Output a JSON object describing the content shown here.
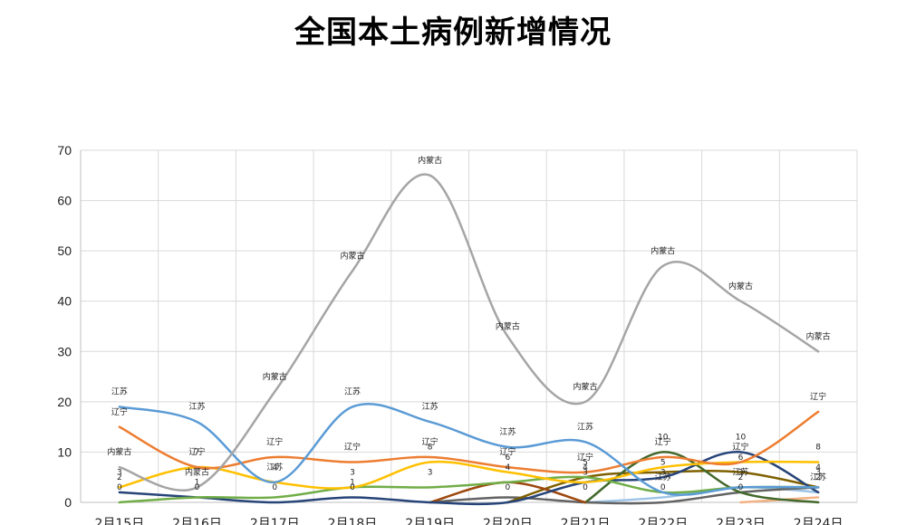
{
  "chart_data": {
    "type": "line",
    "title": "全国本土病例新增情况",
    "xlabel": "",
    "ylabel": "",
    "categories": [
      "2月15日",
      "2月16日",
      "2月17日",
      "2月18日",
      "2月19日",
      "2月20日",
      "2月21日",
      "2月22日",
      "2月23日",
      "2月24日"
    ],
    "ylim": [
      0,
      70
    ],
    "yticks": [
      0,
      10,
      20,
      30,
      40,
      50,
      60,
      70
    ],
    "grid": true,
    "smooth": true,
    "series": [
      {
        "name": "内蒙古",
        "color": "#a5a5a5",
        "values": [
          7,
          3,
          22,
          46,
          65,
          33,
          20,
          47,
          40,
          30
        ]
      },
      {
        "name": "江苏",
        "color": "#5b9bd5",
        "values": [
          19,
          16,
          4,
          19,
          16,
          11,
          12,
          2,
          3,
          3
        ]
      },
      {
        "name": "辽宁",
        "color": "#ed7d31",
        "values": [
          15,
          7,
          9,
          8,
          9,
          7,
          6,
          9,
          8,
          18
        ]
      },
      {
        "name": "",
        "color": "#ffc000",
        "values": [
          3,
          7,
          4,
          3,
          8,
          6,
          4,
          7,
          8,
          8
        ]
      },
      {
        "name": "",
        "color": "#70ad47",
        "values": [
          0,
          1,
          1,
          3,
          3,
          4,
          5,
          2,
          3,
          3
        ]
      },
      {
        "name": "",
        "color": "#264478",
        "values": [
          2,
          1,
          0,
          1,
          0,
          0,
          4,
          5,
          10,
          2
        ]
      },
      {
        "name": "",
        "color": "#9e480e",
        "values": [
          null,
          null,
          null,
          null,
          0,
          4,
          0,
          null,
          null,
          null
        ]
      },
      {
        "name": "",
        "color": "#43682b",
        "values": [
          null,
          null,
          null,
          null,
          null,
          null,
          0,
          10,
          2,
          0
        ]
      },
      {
        "name": "",
        "color": "#7f6000",
        "values": [
          null,
          null,
          null,
          null,
          null,
          0,
          5,
          6,
          6,
          3
        ]
      },
      {
        "name": "",
        "color": "#636363",
        "values": [
          null,
          null,
          null,
          null,
          0,
          1,
          0,
          0,
          2,
          3
        ]
      },
      {
        "name": "",
        "color": "#9dc3e6",
        "values": [
          null,
          null,
          null,
          null,
          null,
          null,
          0,
          1,
          3,
          2
        ]
      },
      {
        "name": "",
        "color": "#f4b183",
        "values": [
          null,
          null,
          null,
          null,
          null,
          null,
          null,
          null,
          0,
          1
        ]
      }
    ],
    "data_labels": [
      {
        "text": "内蒙古",
        "x": "2月15日",
        "y": 9.5
      },
      {
        "text": "内蒙古",
        "x": "2月16日",
        "y": 5.5
      },
      {
        "text": "内蒙古",
        "x": "2月17日",
        "y": 24.5
      },
      {
        "text": "内蒙古",
        "x": "2月18日",
        "y": 48.5
      },
      {
        "text": "内蒙古",
        "x": "2月19日",
        "y": 67.5
      },
      {
        "text": "内蒙古",
        "x": "2月20日",
        "y": 34.5
      },
      {
        "text": "内蒙古",
        "x": "2月21日",
        "y": 22.5
      },
      {
        "text": "内蒙古",
        "x": "2月22日",
        "y": 49.5
      },
      {
        "text": "内蒙古",
        "x": "2月23日",
        "y": 42.5
      },
      {
        "text": "内蒙古",
        "x": "2月24日",
        "y": 32.5
      },
      {
        "text": "江苏",
        "x": "2月15日",
        "y": 21.5
      },
      {
        "text": "江苏",
        "x": "2月16日",
        "y": 18.5
      },
      {
        "text": "江苏",
        "x": "2月17日",
        "y": 6.5
      },
      {
        "text": "江苏",
        "x": "2月18日",
        "y": 21.5
      },
      {
        "text": "江苏",
        "x": "2月19日",
        "y": 18.5
      },
      {
        "text": "江苏",
        "x": "2月20日",
        "y": 13.5
      },
      {
        "text": "江苏",
        "x": "2月21日",
        "y": 14.5
      },
      {
        "text": "江苏",
        "x": "2月22日",
        "y": 4.5
      },
      {
        "text": "江苏",
        "x": "2月23日",
        "y": 5.5
      },
      {
        "text": "江苏",
        "x": "2月24日",
        "y": 4.5
      },
      {
        "text": "辽宁",
        "x": "2月15日",
        "y": 17.5
      },
      {
        "text": "辽宁",
        "x": "2月16日",
        "y": 9.5
      },
      {
        "text": "辽宁",
        "x": "2月17日",
        "y": 11.5
      },
      {
        "text": "辽宁",
        "x": "2月18日",
        "y": 10.5
      },
      {
        "text": "辽宁",
        "x": "2月19日",
        "y": 11.5
      },
      {
        "text": "辽宁",
        "x": "2月20日",
        "y": 9.5
      },
      {
        "text": "辽宁",
        "x": "2月21日",
        "y": 8.5
      },
      {
        "text": "辽宁",
        "x": "2月22日",
        "y": 11.5
      },
      {
        "text": "辽宁",
        "x": "2月23日",
        "y": 10.5
      },
      {
        "text": "辽宁",
        "x": "2月24日",
        "y": 20.5
      },
      {
        "text": "3",
        "x": "2月15日",
        "y": 5.5
      },
      {
        "text": "2",
        "x": "2月15日",
        "y": 4.5
      },
      {
        "text": "0",
        "x": "2月15日",
        "y": 2.5
      },
      {
        "text": "7",
        "x": "2月16日",
        "y": 9.5
      },
      {
        "text": "1",
        "x": "2月16日",
        "y": 3.5
      },
      {
        "text": "0",
        "x": "2月16日",
        "y": 2.5
      },
      {
        "text": "4",
        "x": "2月17日",
        "y": 6.5
      },
      {
        "text": "0",
        "x": "2月17日",
        "y": 2.5
      },
      {
        "text": "3",
        "x": "2月18日",
        "y": 5.5
      },
      {
        "text": "1",
        "x": "2月18日",
        "y": 3.5
      },
      {
        "text": "0",
        "x": "2月18日",
        "y": 2.5
      },
      {
        "text": "8",
        "x": "2月19日",
        "y": 10.5
      },
      {
        "text": "3",
        "x": "2月19日",
        "y": 5.5
      },
      {
        "text": "6",
        "x": "2月20日",
        "y": 8.5
      },
      {
        "text": "4",
        "x": "2月20日",
        "y": 6.5
      },
      {
        "text": "0",
        "x": "2月20日",
        "y": 2.5
      },
      {
        "text": "5",
        "x": "2月21日",
        "y": 7.5
      },
      {
        "text": "4",
        "x": "2月21日",
        "y": 6.5
      },
      {
        "text": "3",
        "x": "2月21日",
        "y": 5.5
      },
      {
        "text": "0",
        "x": "2月21日",
        "y": 2.5
      },
      {
        "text": "10",
        "x": "2月22日",
        "y": 12.5
      },
      {
        "text": "5",
        "x": "2月22日",
        "y": 7.5
      },
      {
        "text": "3",
        "x": "2月22日",
        "y": 5.5
      },
      {
        "text": "0",
        "x": "2月22日",
        "y": 2.5
      },
      {
        "text": "10",
        "x": "2月23日",
        "y": 12.5
      },
      {
        "text": "6",
        "x": "2月23日",
        "y": 8.5
      },
      {
        "text": "3",
        "x": "2月23日",
        "y": 5.5
      },
      {
        "text": "2",
        "x": "2月23日",
        "y": 4.5
      },
      {
        "text": "0",
        "x": "2月23日",
        "y": 2.5
      },
      {
        "text": "8",
        "x": "2月24日",
        "y": 10.5
      },
      {
        "text": "4",
        "x": "2月24日",
        "y": 6.5
      },
      {
        "text": "3",
        "x": "2月24日",
        "y": 5.5
      },
      {
        "text": "2",
        "x": "2月24日",
        "y": 4.5
      }
    ]
  }
}
